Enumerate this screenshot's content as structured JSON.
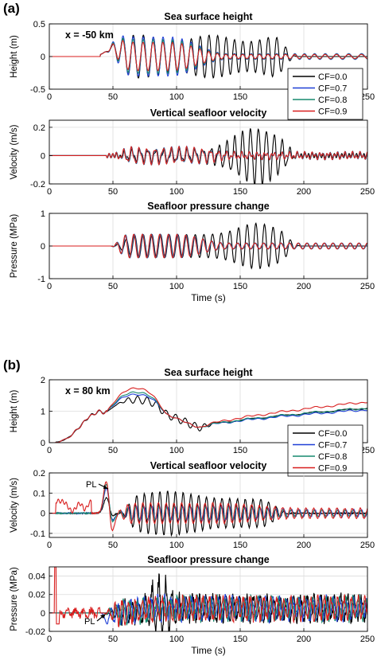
{
  "figure": {
    "panels": [
      {
        "label": "(a)",
        "annotation": "x = -50 km",
        "xlabel": "Time (s)"
      },
      {
        "label": "(b)",
        "annotation": "x = 80 km",
        "xlabel": "Time (s)"
      }
    ],
    "legend": [
      "CF=0.0",
      "CF=0.7",
      "CF=0.8",
      "CF=0.9"
    ],
    "colors": {
      "CF=0.0": "#000000",
      "CF=0.7": "#1f3fd6",
      "CF=0.8": "#178a6e",
      "CF=0.9": "#d81e1e"
    },
    "pl_label": "PL"
  },
  "chart_data": [
    {
      "type": "line",
      "panel": "(a)",
      "title": "Sea surface height",
      "ylabel": "Height (m)",
      "xlabel": "",
      "xlim": [
        0,
        250
      ],
      "ylim": [
        -0.5,
        0.5
      ],
      "xticks": [
        "0",
        "50",
        "100",
        "150",
        "200",
        "250"
      ],
      "yticks": [
        "-0.5",
        "0",
        "0.5"
      ],
      "ytick_values": [
        -0.5,
        0,
        0.5
      ],
      "grid": true,
      "legend": "lower-right",
      "series": [
        {
          "name": "CF=0.0",
          "description": "quiet until ~40 s; oscillation grows to ~±0.35 m near 60–80 s; black persists with large amplitude (±0.35 m) until ~170 s, decaying by ~190 s"
        },
        {
          "name": "CF=0.7",
          "description": "similar onset; amplitude ~±0.35 m near 60–80 s, decaying to small values by ~130 s"
        },
        {
          "name": "CF=0.8",
          "description": "nearly overlaps CF=0.7"
        },
        {
          "name": "CF=0.9",
          "description": "nearly overlaps CF=0.7, slightly smaller late amplitude"
        }
      ]
    },
    {
      "type": "line",
      "panel": "(a)",
      "title": "Vertical seafloor velocity",
      "ylabel": "Velocity (m/s)",
      "xlabel": "",
      "xlim": [
        0,
        250
      ],
      "ylim": [
        -0.2,
        0.25
      ],
      "xticks": [
        "0",
        "50",
        "100",
        "150",
        "200",
        "250"
      ],
      "yticks": [
        "-0.2",
        "0",
        "0.2"
      ],
      "ytick_values": [
        -0.2,
        0,
        0.2
      ],
      "grid": true,
      "series": [
        {
          "name": "CF=0.0",
          "description": "small oscillations from ~50 s; grows to peak ~±0.2 m/s near 160–165 s; decays by ~190 s"
        },
        {
          "name": "CF=0.7",
          "description": "oscillations ~±0.05 m/s from 55–130 s"
        },
        {
          "name": "CF=0.8",
          "description": "nearly overlaps CF=0.7"
        },
        {
          "name": "CF=0.9",
          "description": "nearly overlaps CF=0.7"
        }
      ]
    },
    {
      "type": "line",
      "panel": "(a)",
      "title": "Seafloor pressure change",
      "ylabel": "Pressure (MPa)",
      "xlabel": "Time (s)",
      "xlim": [
        0,
        250
      ],
      "ylim": [
        -1,
        1
      ],
      "xticks": [
        "0",
        "50",
        "100",
        "150",
        "200",
        "250"
      ],
      "yticks": [
        "-1",
        "0",
        "1"
      ],
      "ytick_values": [
        -1,
        0,
        1
      ],
      "grid": true,
      "series": [
        {
          "name": "CF=0.0",
          "description": "oscillations from ~50 s; amplitude ~±0.4 MPa, peak ~±0.7 MPa near 160–165 s; decays by ~190 s"
        },
        {
          "name": "CF=0.7",
          "description": "oscillations ~±0.35 MPa from 55–120 s, decaying afterwards"
        },
        {
          "name": "CF=0.8",
          "description": "nearly overlaps CF=0.7"
        },
        {
          "name": "CF=0.9",
          "description": "nearly overlaps CF=0.7"
        }
      ]
    },
    {
      "type": "line",
      "panel": "(b)",
      "title": "Sea surface height",
      "ylabel": "Height (m)",
      "xlabel": "",
      "xlim": [
        0,
        250
      ],
      "ylim": [
        0,
        2
      ],
      "xticks": [
        "0",
        "50",
        "100",
        "150",
        "200",
        "250"
      ],
      "yticks": [
        "0",
        "1",
        "2"
      ],
      "ytick_values": [
        0,
        1,
        2
      ],
      "grid": true,
      "legend": "lower-right",
      "series": [
        {
          "name": "CF=0.0",
          "description": "rises from 0 at 5 s to ~1 m at 40 s, ~1.4 m with oscillations 60–90 s, falls to ~0.5 m at 120 s, recovers to ~1.1 m at 250 s"
        },
        {
          "name": "CF=0.7",
          "description": "peak ~1.55 m at 60–75 s; minimum ~0.5 m near 120 s; ~1.05 m at 250 s"
        },
        {
          "name": "CF=0.8",
          "description": "peak ~1.6 m at 65–80 s; ~1.1 m at 250 s"
        },
        {
          "name": "CF=0.9",
          "description": "peak ~1.75 m at 70–80 s; minimum ~0.55 m near 125 s; ~1.3 m at 250 s"
        }
      ]
    },
    {
      "type": "line",
      "panel": "(b)",
      "title": "Vertical seafloor velocity",
      "ylabel": "Velocity (m/s)",
      "xlabel": "",
      "xlim": [
        0,
        250
      ],
      "ylim": [
        -0.12,
        0.2
      ],
      "xticks": [
        "0",
        "50",
        "100",
        "150",
        "200",
        "250"
      ],
      "yticks": [
        "-0.1",
        "0",
        "0.1",
        "0.2"
      ],
      "ytick_values": [
        -0.1,
        0,
        0.1,
        0.2
      ],
      "grid": true,
      "series": [
        {
          "name": "CF=0.0",
          "description": "oscillations ~±0.1 m/s from 50–170 s, peaks ~0.15 m/s near 90 s; small afterwards"
        },
        {
          "name": "CF=0.7",
          "description": "PL pulse ~0.13 m/s near 45 s; small oscillations afterwards"
        },
        {
          "name": "CF=0.8",
          "description": "PL pulse ~0.15 m/s near 45 s"
        },
        {
          "name": "CF=0.9",
          "description": "early signal ~0.06 m/s 5–30 s; PL pulse ~0.17 m/s near 45 s; dip ~-0.1 m/s near 47 s; moderate oscillations afterwards"
        }
      ]
    },
    {
      "type": "line",
      "panel": "(b)",
      "title": "Seafloor pressure change",
      "ylabel": "Pressure (MPa)",
      "xlabel": "Time (s)",
      "xlim": [
        0,
        250
      ],
      "ylim": [
        -0.02,
        0.05
      ],
      "xticks": [
        "0",
        "50",
        "100",
        "150",
        "200",
        "250"
      ],
      "yticks": [
        "-0.02",
        "0",
        "0.02",
        "0.04"
      ],
      "ytick_values": [
        -0.02,
        0,
        0.02,
        0.04
      ],
      "grid": true,
      "series": [
        {
          "name": "CF=0.0",
          "description": "noisy oscillations ~0.01 MPa from 50 s; peak ~0.04 MPa near 85–90 s"
        },
        {
          "name": "CF=0.7",
          "description": "noisy oscillations ~0.01 MPa; PL dip near 45 s"
        },
        {
          "name": "CF=0.8",
          "description": "noisy oscillations ~0.01 MPa"
        },
        {
          "name": "CF=0.9",
          "description": "spike to ~0.05 MPa near 5 s; early fluctuations ~0.01 MPa; noisy oscillations afterwards"
        }
      ]
    }
  ]
}
